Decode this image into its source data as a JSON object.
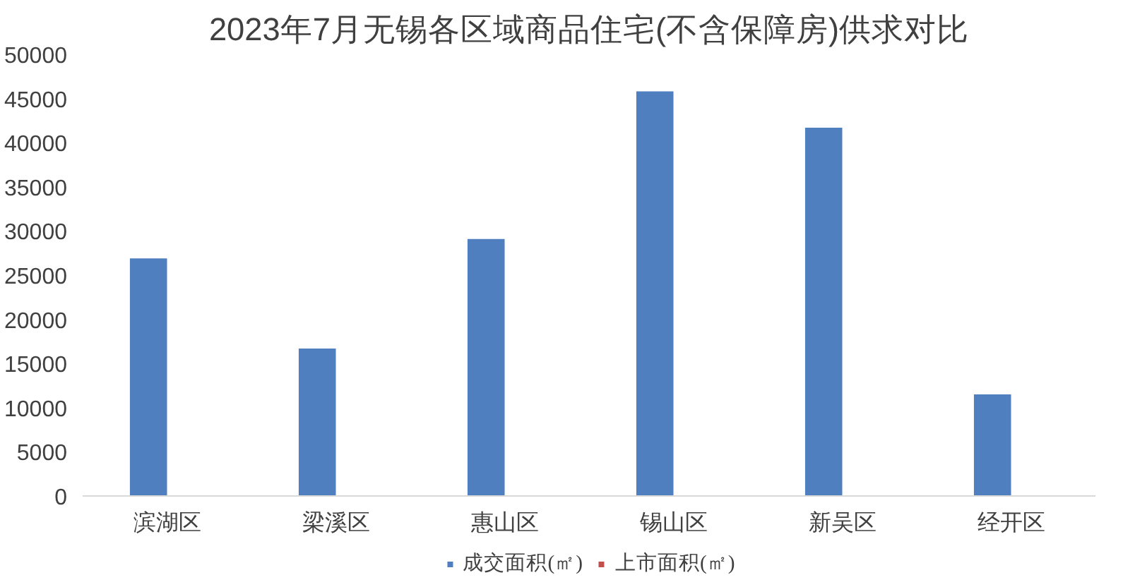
{
  "chart_data": {
    "type": "bar",
    "title": "2023年7月无锡各区域商品住宅(不含保障房)供求对比",
    "categories": [
      "滨湖区",
      "梁溪区",
      "惠山区",
      "锡山区",
      "新吴区",
      "经开区"
    ],
    "series": [
      {
        "name": "成交面积(㎡)",
        "color": "#4f7fbf",
        "values": [
          26900,
          16700,
          29100,
          45800,
          41700,
          11500
        ]
      },
      {
        "name": "上市面积(㎡)",
        "color": "#c0504d",
        "values": [
          0,
          0,
          0,
          0,
          0,
          0
        ]
      }
    ],
    "ylim": [
      0,
      50000
    ],
    "yticks": [
      0,
      5000,
      10000,
      15000,
      20000,
      25000,
      30000,
      35000,
      40000,
      45000,
      50000
    ],
    "grid": false,
    "legend": "bottom"
  }
}
